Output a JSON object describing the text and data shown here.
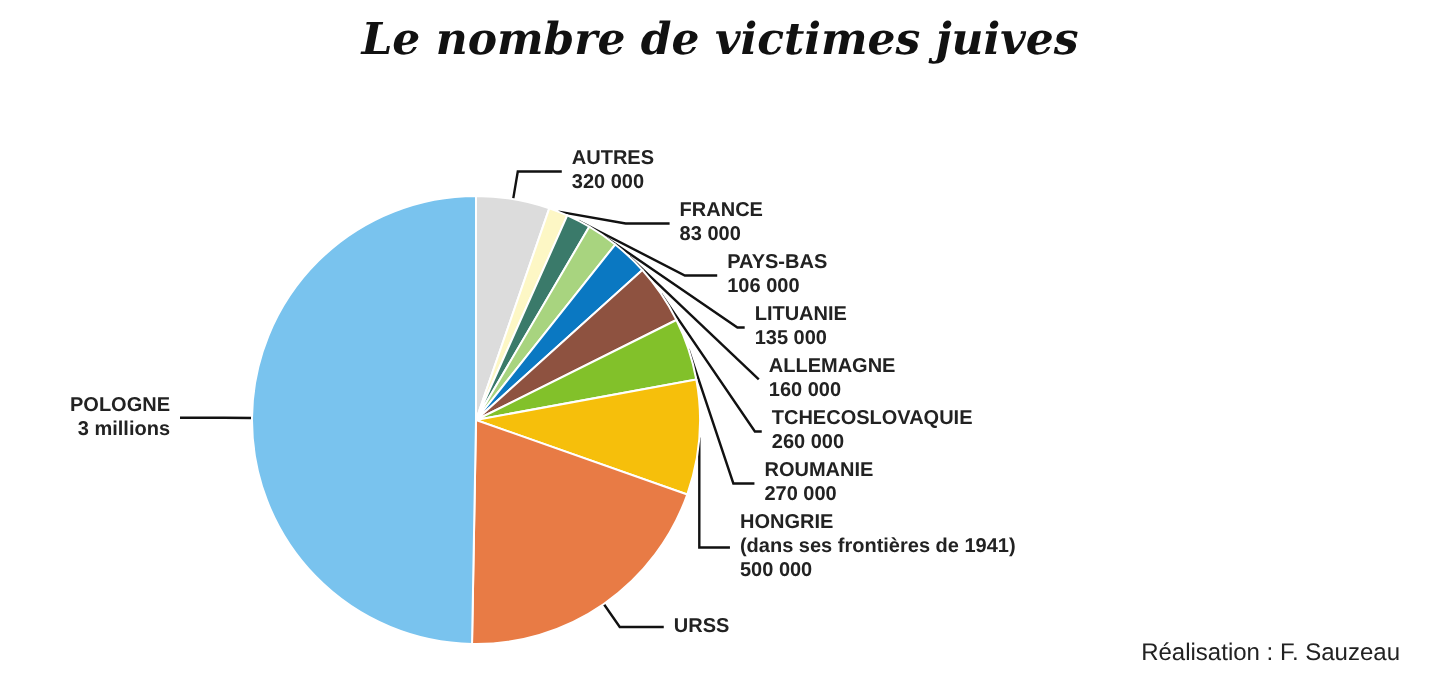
{
  "chart_data": {
    "type": "pie",
    "title": "Le nombre de victimes juives",
    "categories": [
      "AUTRES",
      "FRANCE",
      "PAYS-BAS",
      "LITUANIE",
      "ALLEMAGNE",
      "TCHECOSLOVAQUIE",
      "ROUMANIE",
      "HONGRIE\n(dans ses frontières de 1941)",
      "URSS",
      "POLOGNE"
    ],
    "values": [
      320000,
      83000,
      106000,
      135000,
      160000,
      260000,
      270000,
      500000,
      1200000,
      3000000
    ],
    "value_labels": [
      "320 000",
      "83 000",
      "106 000",
      "135 000",
      "160 000",
      "260 000",
      "270 000",
      "500 000",
      null,
      "3 millions"
    ],
    "colors": [
      "#dcdcdc",
      "#fdf7c5",
      "#3a7a6a",
      "#a8d47f",
      "#0a78c2",
      "#8e5240",
      "#82c12a",
      "#f6bf0b",
      "#e87b45",
      "#79c3ee"
    ],
    "legend": false,
    "annotations": [
      "Réalisation : F. Sauzeau"
    ]
  }
}
